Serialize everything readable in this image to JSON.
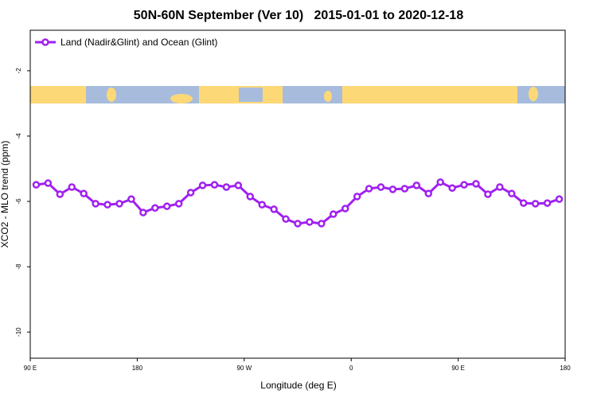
{
  "chart_data": {
    "type": "line",
    "title": "50N-60N September (Ver 10)   2015-01-01 to 2020-12-18",
    "x_label": "Longitude (deg E)",
    "y_label": "XCO2 - MLO trend (ppm)",
    "legend": "top-left",
    "x": [
      95,
      105,
      115,
      125,
      135,
      145,
      155,
      165,
      175,
      185,
      195,
      205,
      215,
      225,
      235,
      245,
      255,
      265,
      275,
      285,
      295,
      305,
      315,
      325,
      335,
      345,
      355,
      365,
      375,
      385,
      395,
      405,
      415,
      425,
      435,
      445,
      455,
      465,
      475,
      485,
      495,
      505,
      515,
      525,
      535
    ],
    "series": [
      {
        "name": "Land (Nadir&Glint) and Ocean (Glint)",
        "color": "#a020f0",
        "values": [
          -5.49,
          -5.44,
          -5.78,
          -5.56,
          -5.76,
          -6.07,
          -6.1,
          -6.07,
          -5.93,
          -6.34,
          -6.2,
          -6.15,
          -6.07,
          -5.73,
          -5.51,
          -5.49,
          -5.56,
          -5.51,
          -5.85,
          -6.1,
          -6.24,
          -6.54,
          -6.68,
          -6.63,
          -6.68,
          -6.39,
          -6.22,
          -5.85,
          -5.61,
          -5.56,
          -5.63,
          -5.61,
          -5.51,
          -5.76,
          -5.41,
          -5.59,
          -5.49,
          -5.46,
          -5.78,
          -5.56,
          -5.76,
          -6.05,
          -6.07,
          -6.05,
          -5.93
        ]
      }
    ],
    "xlim": [
      90,
      540
    ],
    "xticks": [
      {
        "value": 90,
        "label": "90 E"
      },
      180,
      {
        "value": 270,
        "label": "90 W"
      },
      {
        "value": 360,
        "label": "0"
      },
      {
        "value": 450,
        "label": "90 E"
      },
      {
        "value": 540,
        "label": "180"
      }
    ],
    "ylim": [
      -0.76,
      -10.8
    ],
    "yticks": [
      -2,
      -4,
      -6,
      -8,
      -10
    ]
  }
}
